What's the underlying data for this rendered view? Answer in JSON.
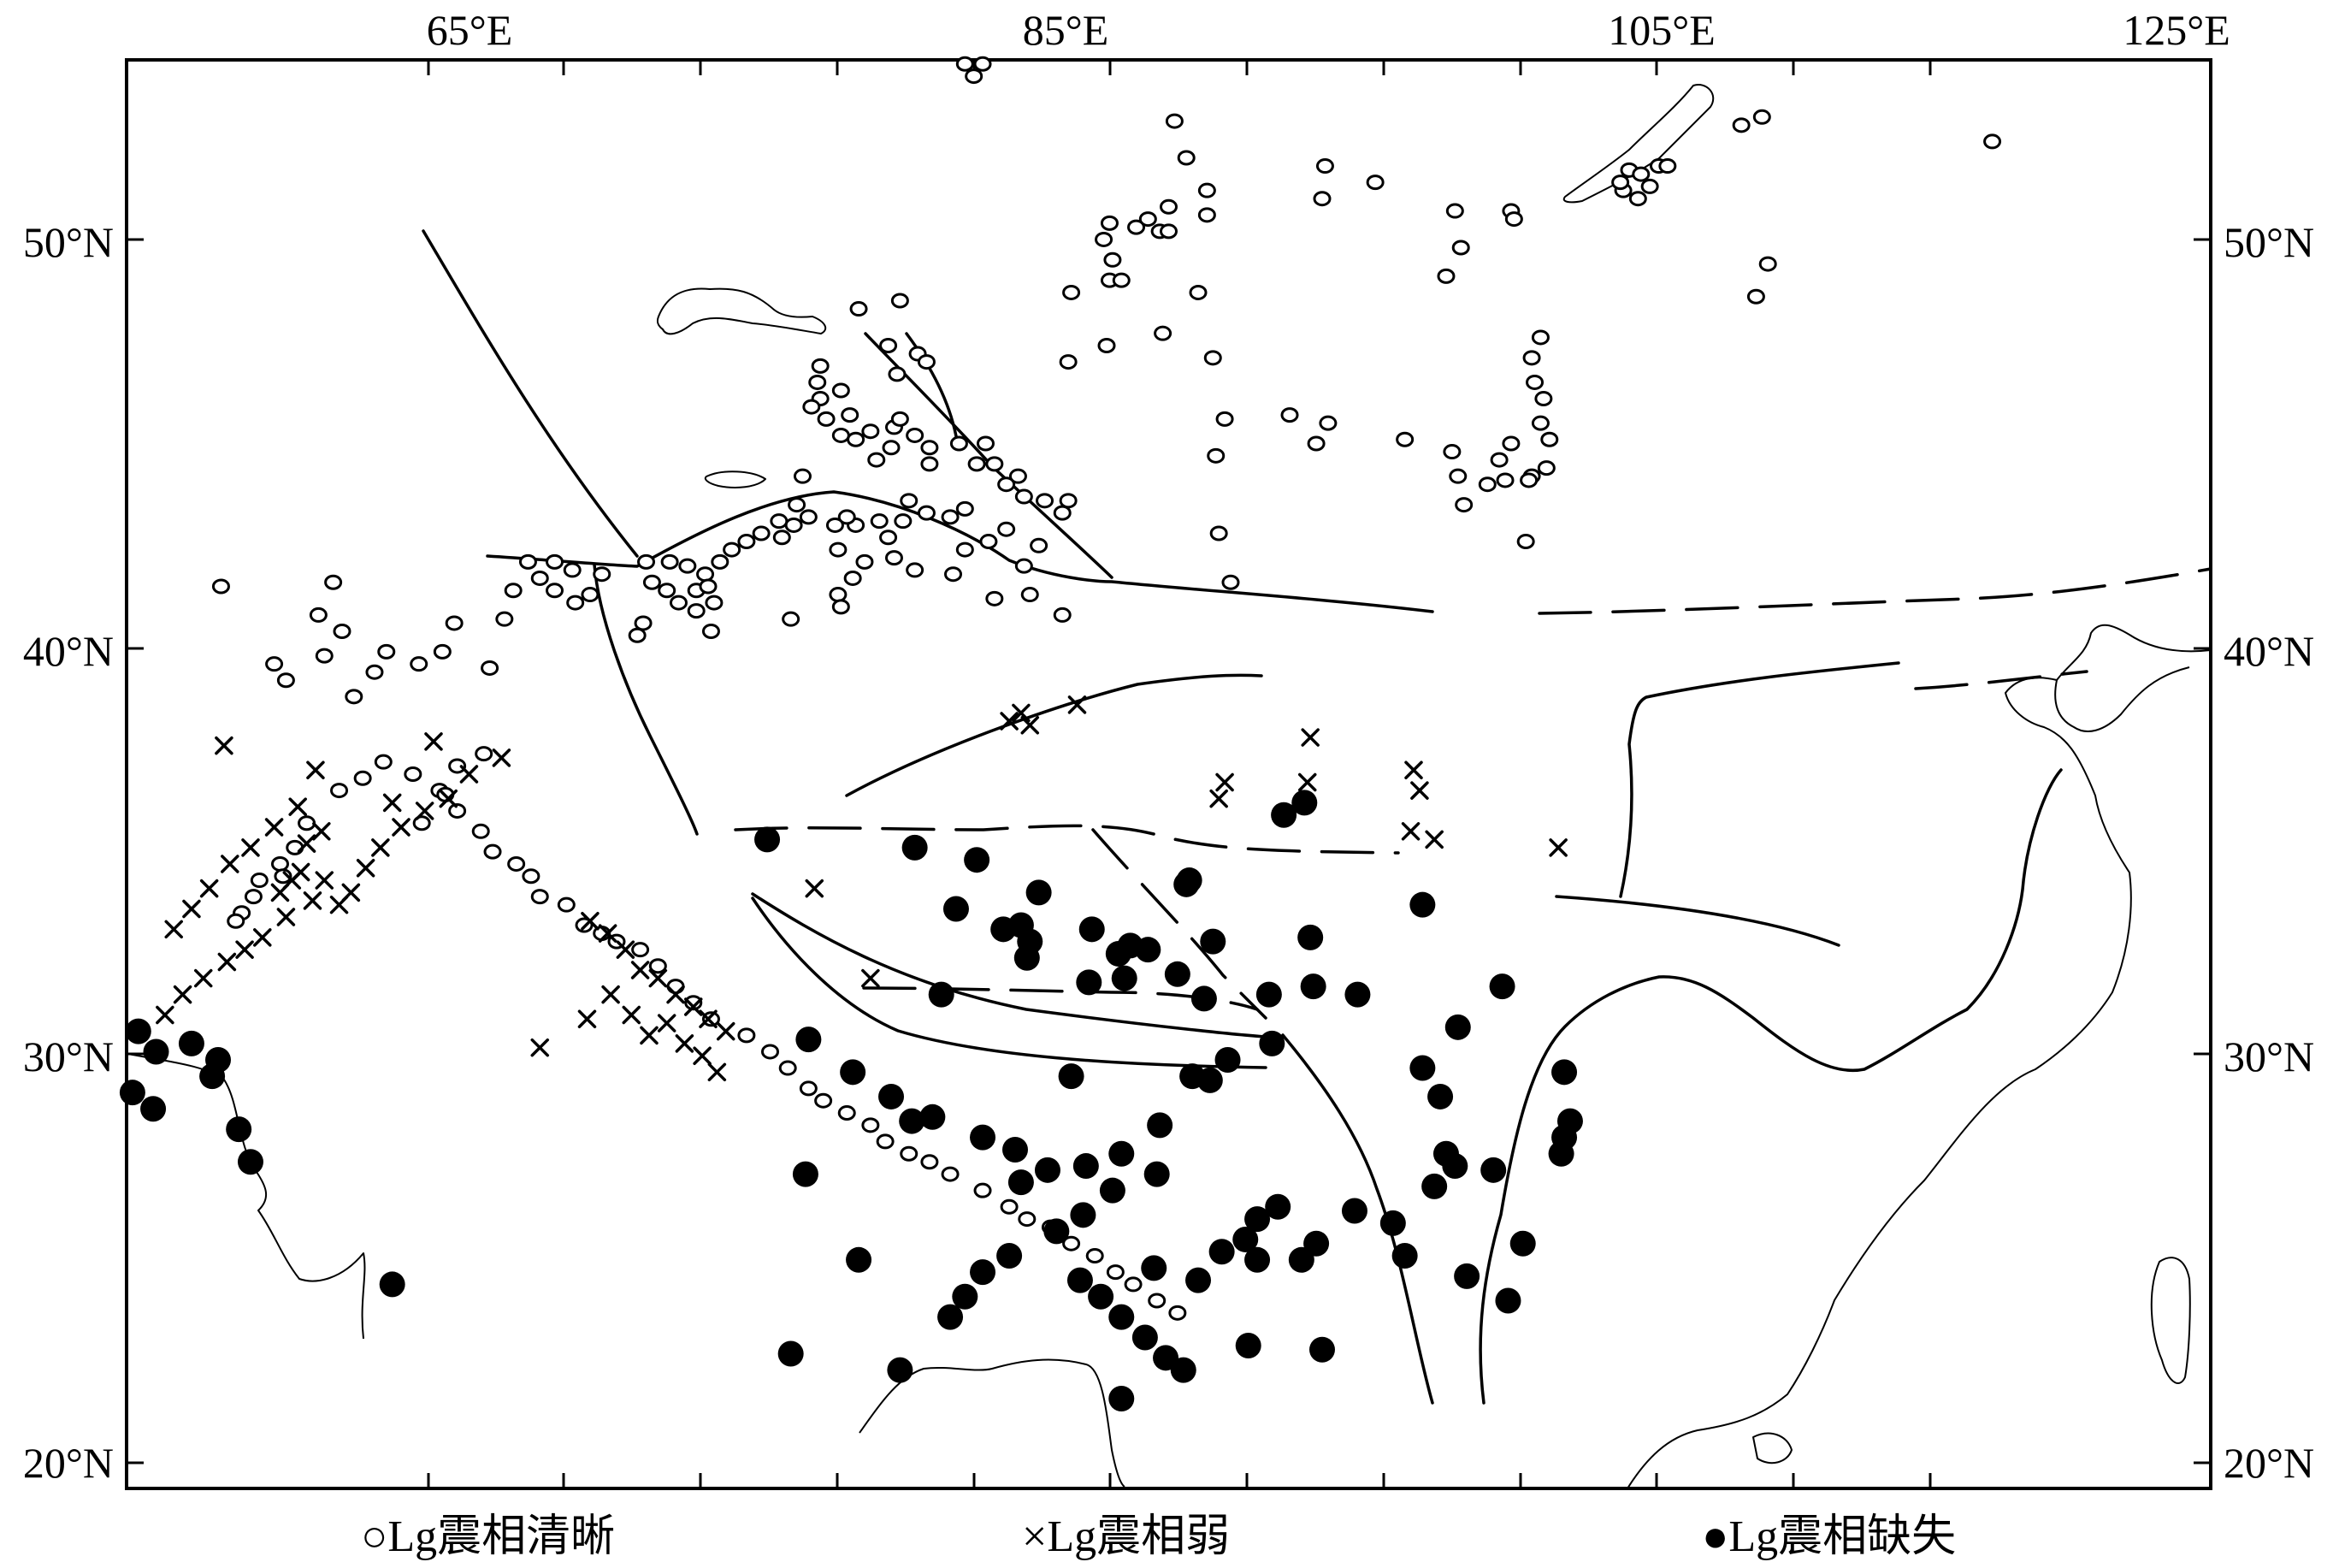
{
  "lon_labels": [
    "65°E",
    "85°E",
    "105°E",
    "125°E"
  ],
  "lat_labels": [
    "50°N",
    "40°N",
    "30°N",
    "20°N"
  ],
  "legend": [
    {
      "symbol": "circle",
      "label": "○Lg震相清晰"
    },
    {
      "symbol": "cross",
      "label": "×Lg震相弱"
    },
    {
      "symbol": "dot",
      "label": "●Lg震相缺失"
    }
  ],
  "map_extent": {
    "lon": [
      56.2,
      126.8
    ],
    "lat": [
      19.3,
      54.3
    ]
  },
  "stations": {
    "clear": [
      [
        84.6,
        54.2
      ],
      [
        85.2,
        54.2
      ],
      [
        84.9,
        53.9
      ],
      [
        91.7,
        52.8
      ],
      [
        92.1,
        51.9
      ],
      [
        92.8,
        51.1
      ],
      [
        96.8,
        51.7
      ],
      [
        98.5,
        51.3
      ],
      [
        96.7,
        50.9
      ],
      [
        92.8,
        50.5
      ],
      [
        91.5,
        50.7
      ],
      [
        90.8,
        50.4
      ],
      [
        90.4,
        50.2
      ],
      [
        89.5,
        50.3
      ],
      [
        89.3,
        49.9
      ],
      [
        89.6,
        49.4
      ],
      [
        89.5,
        48.9
      ],
      [
        89.9,
        48.9
      ],
      [
        91.2,
        50.1
      ],
      [
        91.5,
        50.1
      ],
      [
        92.5,
        48.6
      ],
      [
        88.2,
        48.6
      ],
      [
        91.3,
        47.6
      ],
      [
        89.4,
        47.3
      ],
      [
        88.1,
        46.9
      ],
      [
        93.0,
        47.0
      ],
      [
        95.6,
        45.6
      ],
      [
        96.9,
        45.4
      ],
      [
        96.5,
        44.9
      ],
      [
        99.5,
        45.0
      ],
      [
        81.0,
        48.2
      ],
      [
        82.4,
        48.4
      ],
      [
        82.0,
        47.3
      ],
      [
        83.0,
        47.1
      ],
      [
        82.3,
        46.6
      ],
      [
        83.3,
        46.9
      ],
      [
        79.7,
        46.8
      ],
      [
        79.6,
        46.4
      ],
      [
        79.7,
        46.0
      ],
      [
        80.4,
        46.2
      ],
      [
        79.4,
        45.8
      ],
      [
        79.9,
        45.5
      ],
      [
        80.7,
        45.6
      ],
      [
        80.4,
        45.1
      ],
      [
        80.9,
        45.0
      ],
      [
        81.4,
        45.2
      ],
      [
        82.2,
        45.3
      ],
      [
        82.4,
        45.5
      ],
      [
        82.9,
        45.1
      ],
      [
        83.4,
        44.8
      ],
      [
        81.6,
        44.5
      ],
      [
        82.1,
        44.8
      ],
      [
        83.4,
        44.4
      ],
      [
        84.4,
        44.9
      ],
      [
        85.3,
        44.9
      ],
      [
        85.6,
        44.4
      ],
      [
        86.4,
        44.1
      ],
      [
        86.6,
        43.6
      ],
      [
        86.0,
        43.9
      ],
      [
        85.0,
        44.4
      ],
      [
        84.6,
        43.3
      ],
      [
        84.1,
        43.1
      ],
      [
        83.3,
        43.2
      ],
      [
        82.7,
        43.5
      ],
      [
        82.5,
        43.0
      ],
      [
        81.7,
        43.0
      ],
      [
        80.9,
        42.9
      ],
      [
        80.6,
        43.1
      ],
      [
        80.2,
        42.9
      ],
      [
        79.3,
        43.1
      ],
      [
        78.8,
        42.9
      ],
      [
        78.4,
        42.6
      ],
      [
        77.7,
        42.7
      ],
      [
        77.2,
        42.5
      ],
      [
        76.7,
        42.3
      ],
      [
        76.3,
        42.0
      ],
      [
        75.8,
        41.7
      ],
      [
        75.5,
        41.3
      ],
      [
        74.9,
        41.0
      ],
      [
        74.5,
        41.3
      ],
      [
        74.0,
        41.5
      ],
      [
        73.8,
        42.0
      ],
      [
        74.6,
        42.0
      ],
      [
        75.2,
        41.9
      ],
      [
        75.9,
        41.4
      ],
      [
        76.1,
        41.0
      ],
      [
        75.5,
        40.8
      ],
      [
        76.0,
        40.3
      ],
      [
        73.7,
        40.5
      ],
      [
        73.5,
        40.2
      ],
      [
        72.3,
        41.7
      ],
      [
        71.9,
        41.2
      ],
      [
        71.4,
        41.0
      ],
      [
        70.7,
        41.3
      ],
      [
        70.2,
        41.6
      ],
      [
        70.7,
        42.0
      ],
      [
        71.3,
        41.8
      ],
      [
        69.8,
        42.0
      ],
      [
        78.9,
        43.4
      ],
      [
        78.3,
        43.0
      ],
      [
        87.3,
        43.5
      ],
      [
        88.1,
        43.5
      ],
      [
        86.0,
        42.8
      ],
      [
        87.9,
        43.2
      ],
      [
        84.6,
        42.3
      ],
      [
        85.4,
        42.5
      ],
      [
        86.6,
        41.9
      ],
      [
        87.1,
        42.4
      ],
      [
        80.3,
        42.3
      ],
      [
        81.2,
        42.0
      ],
      [
        82.0,
        42.6
      ],
      [
        82.2,
        42.1
      ],
      [
        82.9,
        41.8
      ],
      [
        84.2,
        41.7
      ],
      [
        93.1,
        44.6
      ],
      [
        93.4,
        45.5
      ],
      [
        93.2,
        42.7
      ],
      [
        103.6,
        42.5
      ],
      [
        79.1,
        44.1
      ],
      [
        80.3,
        41.2
      ],
      [
        80.8,
        41.6
      ],
      [
        80.4,
        40.9
      ],
      [
        78.7,
        40.6
      ],
      [
        85.6,
        41.1
      ],
      [
        86.8,
        41.2
      ],
      [
        87.9,
        40.7
      ],
      [
        93.6,
        41.5
      ],
      [
        101.1,
        44.7
      ],
      [
        101.3,
        44.1
      ],
      [
        101.5,
        43.4
      ],
      [
        102.3,
        43.9
      ],
      [
        102.9,
        44.0
      ],
      [
        103.8,
        44.1
      ],
      [
        104.3,
        44.3
      ],
      [
        103.7,
        44.0
      ],
      [
        102.7,
        44.5
      ],
      [
        103.1,
        44.9
      ],
      [
        104.4,
        45.0
      ],
      [
        104.1,
        45.4
      ],
      [
        103.9,
        46.4
      ],
      [
        103.8,
        47.0
      ],
      [
        104.1,
        47.5
      ],
      [
        104.2,
        46.0
      ],
      [
        103.1,
        50.6
      ],
      [
        103.2,
        50.4
      ],
      [
        101.4,
        49.7
      ],
      [
        101.2,
        50.6
      ],
      [
        100.9,
        49.0
      ],
      [
        106.9,
        51.1
      ],
      [
        107.1,
        51.6
      ],
      [
        107.5,
        51.5
      ],
      [
        107.8,
        51.2
      ],
      [
        108.1,
        51.7
      ],
      [
        108.4,
        51.7
      ],
      [
        107.4,
        50.9
      ],
      [
        106.8,
        51.3
      ],
      [
        110.9,
        52.7
      ],
      [
        111.6,
        52.9
      ],
      [
        111.8,
        49.3
      ],
      [
        111.4,
        48.5
      ],
      [
        119.4,
        52.3
      ],
      [
        69.3,
        41.3
      ],
      [
        69.0,
        40.6
      ],
      [
        68.5,
        39.4
      ],
      [
        67.3,
        40.5
      ],
      [
        66.9,
        39.8
      ],
      [
        66.1,
        39.5
      ],
      [
        63.2,
        41.5
      ],
      [
        62.7,
        40.7
      ],
      [
        63.5,
        40.3
      ],
      [
        62.9,
        39.7
      ],
      [
        61.6,
        39.1
      ],
      [
        61.2,
        39.5
      ],
      [
        59.4,
        41.4
      ],
      [
        65.0,
        39.8
      ],
      [
        64.6,
        39.3
      ],
      [
        63.9,
        38.7
      ],
      [
        67.4,
        37.0
      ],
      [
        68.3,
        37.3
      ],
      [
        66.8,
        36.4
      ],
      [
        65.9,
        36.8
      ],
      [
        67.0,
        36.3
      ],
      [
        64.9,
        37.1
      ],
      [
        64.2,
        36.7
      ],
      [
        63.4,
        36.4
      ],
      [
        62.3,
        35.6
      ],
      [
        61.9,
        35.0
      ],
      [
        61.4,
        34.6
      ],
      [
        60.7,
        34.2
      ],
      [
        60.5,
        33.8
      ],
      [
        60.1,
        33.4
      ],
      [
        59.9,
        33.2
      ],
      [
        61.5,
        34.3
      ],
      [
        66.2,
        35.6
      ],
      [
        67.4,
        35.9
      ],
      [
        68.2,
        35.4
      ],
      [
        68.6,
        34.9
      ],
      [
        69.4,
        34.6
      ],
      [
        69.9,
        34.3
      ],
      [
        70.2,
        33.8
      ],
      [
        71.1,
        33.6
      ],
      [
        71.7,
        33.1
      ],
      [
        72.3,
        32.9
      ],
      [
        72.8,
        32.7
      ],
      [
        73.6,
        32.5
      ],
      [
        74.2,
        32.1
      ],
      [
        74.8,
        31.6
      ],
      [
        75.4,
        31.2
      ],
      [
        76.0,
        30.8
      ],
      [
        77.2,
        30.4
      ],
      [
        78.0,
        30.0
      ],
      [
        78.6,
        29.6
      ],
      [
        79.3,
        29.1
      ],
      [
        79.8,
        28.8
      ],
      [
        80.6,
        28.5
      ],
      [
        81.4,
        28.2
      ],
      [
        81.9,
        27.8
      ],
      [
        82.7,
        27.5
      ],
      [
        83.4,
        27.3
      ],
      [
        84.1,
        27.0
      ],
      [
        85.2,
        26.6
      ],
      [
        86.1,
        26.2
      ],
      [
        86.7,
        25.9
      ],
      [
        87.5,
        25.7
      ],
      [
        88.2,
        25.3
      ],
      [
        89.0,
        25.0
      ],
      [
        89.7,
        24.6
      ],
      [
        90.3,
        24.3
      ],
      [
        91.1,
        23.9
      ],
      [
        91.8,
        23.6
      ]
    ],
    "weak": [
      [
        59.5,
        37.5
      ],
      [
        62.3,
        35.1
      ],
      [
        62.8,
        35.4
      ],
      [
        61.6,
        33.3
      ],
      [
        61.4,
        33.9
      ],
      [
        61.8,
        34.2
      ],
      [
        62.1,
        34.4
      ],
      [
        62.5,
        33.7
      ],
      [
        62.9,
        34.2
      ],
      [
        63.4,
        33.6
      ],
      [
        63.8,
        33.9
      ],
      [
        64.3,
        34.5
      ],
      [
        64.8,
        35.0
      ],
      [
        65.5,
        35.5
      ],
      [
        66.3,
        35.9
      ],
      [
        67.1,
        36.2
      ],
      [
        60.8,
        32.8
      ],
      [
        60.2,
        32.5
      ],
      [
        59.6,
        32.2
      ],
      [
        58.8,
        31.8
      ],
      [
        58.1,
        31.4
      ],
      [
        57.5,
        30.9
      ],
      [
        65.2,
        36.1
      ],
      [
        66.6,
        37.6
      ],
      [
        67.8,
        36.8
      ],
      [
        68.9,
        37.2
      ],
      [
        71.9,
        33.2
      ],
      [
        72.5,
        32.9
      ],
      [
        73.1,
        32.5
      ],
      [
        73.6,
        32.0
      ],
      [
        74.2,
        31.8
      ],
      [
        74.8,
        31.4
      ],
      [
        75.4,
        31.1
      ],
      [
        75.9,
        30.8
      ],
      [
        76.5,
        30.5
      ],
      [
        71.8,
        30.8
      ],
      [
        72.6,
        31.4
      ],
      [
        73.3,
        30.9
      ],
      [
        73.9,
        30.4
      ],
      [
        74.5,
        30.7
      ],
      [
        75.1,
        30.2
      ],
      [
        75.7,
        29.9
      ],
      [
        76.2,
        29.5
      ],
      [
        70.2,
        30.1
      ],
      [
        79.5,
        34.0
      ],
      [
        81.4,
        31.8
      ],
      [
        86.1,
        38.1
      ],
      [
        86.5,
        38.3
      ],
      [
        86.8,
        38.0
      ],
      [
        88.4,
        38.5
      ],
      [
        93.4,
        36.6
      ],
      [
        93.2,
        36.2
      ],
      [
        96.2,
        36.6
      ],
      [
        96.3,
        37.7
      ],
      [
        99.8,
        36.9
      ],
      [
        100.0,
        36.4
      ],
      [
        99.7,
        35.4
      ],
      [
        100.5,
        35.2
      ],
      [
        104.7,
        35.0
      ],
      [
        62.6,
        36.9
      ],
      [
        62.0,
        36.0
      ],
      [
        61.2,
        35.5
      ],
      [
        60.4,
        35.0
      ],
      [
        59.7,
        34.6
      ],
      [
        59.0,
        34.0
      ],
      [
        58.4,
        33.5
      ],
      [
        57.8,
        33.0
      ]
    ],
    "absent": [
      [
        56.6,
        30.5
      ],
      [
        57.2,
        30.0
      ],
      [
        58.4,
        30.2
      ],
      [
        59.3,
        29.8
      ],
      [
        59.1,
        29.4
      ],
      [
        60.0,
        28.1
      ],
      [
        56.4,
        29.0
      ],
      [
        57.1,
        28.6
      ],
      [
        60.4,
        27.3
      ],
      [
        65.2,
        24.3
      ],
      [
        77.9,
        35.2
      ],
      [
        82.9,
        35.0
      ],
      [
        85.0,
        34.7
      ],
      [
        87.1,
        33.9
      ],
      [
        92.1,
        34.1
      ],
      [
        84.3,
        33.5
      ],
      [
        86.5,
        33.1
      ],
      [
        86.8,
        32.7
      ],
      [
        88.9,
        33.0
      ],
      [
        89.8,
        32.4
      ],
      [
        90.2,
        32.6
      ],
      [
        90.8,
        32.5
      ],
      [
        93.0,
        32.7
      ],
      [
        96.3,
        32.8
      ],
      [
        97.9,
        31.4
      ],
      [
        96.4,
        31.6
      ],
      [
        100.1,
        33.6
      ],
      [
        101.3,
        30.6
      ],
      [
        102.8,
        31.6
      ],
      [
        96.1,
        36.1
      ],
      [
        95.4,
        35.8
      ],
      [
        92.2,
        34.2
      ],
      [
        85.9,
        33.0
      ],
      [
        86.7,
        32.3
      ],
      [
        88.8,
        31.7
      ],
      [
        90.0,
        31.8
      ],
      [
        91.8,
        31.9
      ],
      [
        92.7,
        31.3
      ],
      [
        94.9,
        31.4
      ],
      [
        95.0,
        30.2
      ],
      [
        93.5,
        29.8
      ],
      [
        92.9,
        29.3
      ],
      [
        91.2,
        28.2
      ],
      [
        89.9,
        27.5
      ],
      [
        88.7,
        27.2
      ],
      [
        87.4,
        27.1
      ],
      [
        86.3,
        27.6
      ],
      [
        85.2,
        27.9
      ],
      [
        83.5,
        28.4
      ],
      [
        82.1,
        28.9
      ],
      [
        80.8,
        29.5
      ],
      [
        79.3,
        30.3
      ],
      [
        83.8,
        31.4
      ],
      [
        88.2,
        29.4
      ],
      [
        92.3,
        29.4
      ],
      [
        91.1,
        27.0
      ],
      [
        89.6,
        26.6
      ],
      [
        88.6,
        26.0
      ],
      [
        87.7,
        25.6
      ],
      [
        86.1,
        25.0
      ],
      [
        85.2,
        24.6
      ],
      [
        84.6,
        24.0
      ],
      [
        84.1,
        23.5
      ],
      [
        88.5,
        24.4
      ],
      [
        89.2,
        24.0
      ],
      [
        89.9,
        23.5
      ],
      [
        90.7,
        23.0
      ],
      [
        91.4,
        22.5
      ],
      [
        92.0,
        22.2
      ],
      [
        94.2,
        22.8
      ],
      [
        93.3,
        25.1
      ],
      [
        94.1,
        25.4
      ],
      [
        94.5,
        25.9
      ],
      [
        95.2,
        26.2
      ],
      [
        96.0,
        24.9
      ],
      [
        96.5,
        25.3
      ],
      [
        100.1,
        29.6
      ],
      [
        100.7,
        28.9
      ],
      [
        102.5,
        27.1
      ],
      [
        101.2,
        27.2
      ],
      [
        100.5,
        26.7
      ],
      [
        104.9,
        29.5
      ],
      [
        105.1,
        28.3
      ],
      [
        104.9,
        27.9
      ],
      [
        104.8,
        27.5
      ],
      [
        103.5,
        25.3
      ],
      [
        103.0,
        23.9
      ],
      [
        101.6,
        24.5
      ],
      [
        99.5,
        25.0
      ],
      [
        89.9,
        21.5
      ],
      [
        78.7,
        22.6
      ],
      [
        82.4,
        22.2
      ],
      [
        81.0,
        24.9
      ],
      [
        79.2,
        27.0
      ],
      [
        82.8,
        28.3
      ],
      [
        86.5,
        26.8
      ],
      [
        91.0,
        24.7
      ],
      [
        92.5,
        24.4
      ],
      [
        94.5,
        24.9
      ],
      [
        96.7,
        22.7
      ],
      [
        97.8,
        26.1
      ],
      [
        99.1,
        25.8
      ],
      [
        100.9,
        27.5
      ]
    ]
  }
}
